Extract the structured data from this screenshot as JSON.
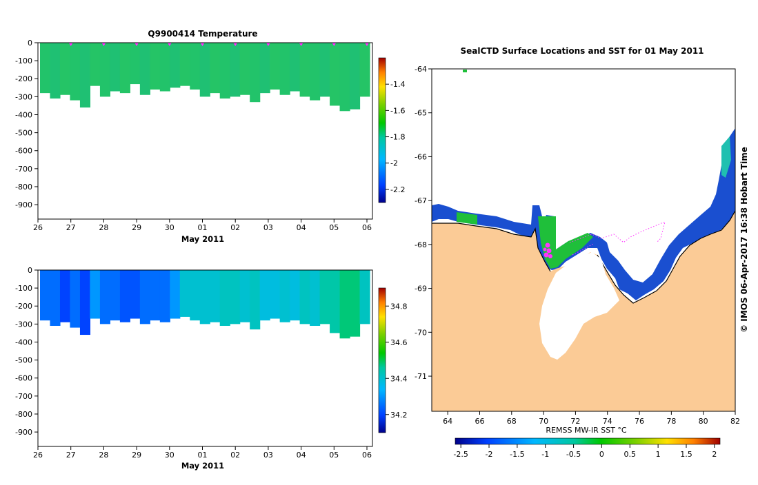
{
  "chart_data": [
    {
      "type": "heatmap",
      "title": "Q9900414  Temperature",
      "xlabel": "May 2011",
      "x_ticks": [
        "26",
        "27",
        "28",
        "29",
        "30",
        "01",
        "02",
        "03",
        "04",
        "05",
        "06"
      ],
      "y_ticks": [
        "0",
        "-100",
        "-200",
        "-300",
        "-400",
        "-500",
        "-600",
        "-700",
        "-800",
        "-900"
      ],
      "ylim": [
        -980,
        0
      ],
      "profile_depths": [
        -280,
        -310,
        -290,
        -320,
        -360,
        -240,
        -300,
        -270,
        -280,
        -230,
        -290,
        -260,
        -270,
        -250,
        -240,
        -260,
        -300,
        -280,
        -310,
        -300,
        -290,
        -330,
        -280,
        -260,
        -290,
        -270,
        -300,
        -320,
        -300,
        -350,
        -380,
        -370,
        -300
      ],
      "colorbar_ticks": [
        "-1.4",
        "-1.6",
        "-1.8",
        "-2",
        "-2.2"
      ],
      "colorbar_range": [
        -2.3,
        -1.2
      ],
      "surface_markers": [
        "27",
        "28",
        "29",
        "30",
        "01",
        "02",
        "03",
        "04",
        "05",
        "06"
      ]
    },
    {
      "type": "heatmap",
      "title": "",
      "xlabel": "May 2011",
      "x_ticks": [
        "26",
        "27",
        "28",
        "29",
        "30",
        "01",
        "02",
        "03",
        "04",
        "05",
        "06"
      ],
      "y_ticks": [
        "0",
        "-100",
        "-200",
        "-300",
        "-400",
        "-500",
        "-600",
        "-700",
        "-800",
        "-900"
      ],
      "ylim": [
        -980,
        0
      ],
      "profile_depths": [
        -280,
        -310,
        -290,
        -320,
        -360,
        -270,
        -300,
        -280,
        -290,
        -270,
        -300,
        -280,
        -290,
        -270,
        -260,
        -280,
        -300,
        -290,
        -310,
        -300,
        -290,
        -330,
        -280,
        -270,
        -290,
        -280,
        -300,
        -310,
        -300,
        -350,
        -380,
        -370,
        -300
      ],
      "profile_salinity": [
        34.25,
        34.25,
        34.2,
        34.25,
        34.2,
        34.3,
        34.25,
        34.25,
        34.22,
        34.22,
        34.25,
        34.25,
        34.25,
        34.3,
        34.4,
        34.4,
        34.4,
        34.4,
        34.42,
        34.42,
        34.4,
        34.42,
        34.38,
        34.38,
        34.4,
        34.38,
        34.42,
        34.4,
        34.45,
        34.45,
        34.48,
        34.48,
        34.42
      ],
      "colorbar_ticks": [
        "34.8",
        "34.6",
        "34.4",
        "34.2"
      ],
      "colorbar_range": [
        34.1,
        34.9
      ]
    },
    {
      "type": "map",
      "title": "SealCTD Surface Locations and SST for 01 May 2011",
      "x_ticks": [
        "64",
        "66",
        "68",
        "70",
        "72",
        "74",
        "76",
        "78",
        "80",
        "82"
      ],
      "y_ticks": [
        "-64",
        "-65",
        "-66",
        "-67",
        "-68",
        "-69",
        "-70",
        "-71"
      ],
      "xlim": [
        63,
        82
      ],
      "ylim": [
        -71.8,
        -64
      ],
      "colorbar_label": "REMSS MW-IR SST °C",
      "colorbar_ticks": [
        "-2.5",
        "-2",
        "-1.5",
        "-1",
        "-0.5",
        "0",
        "0.5",
        "1",
        "1.5",
        "2"
      ],
      "colorbar_range": [
        -2.6,
        2.1
      ],
      "credit": "© IMOS 06-Apr-2017 16:38 Hobart Time"
    }
  ]
}
